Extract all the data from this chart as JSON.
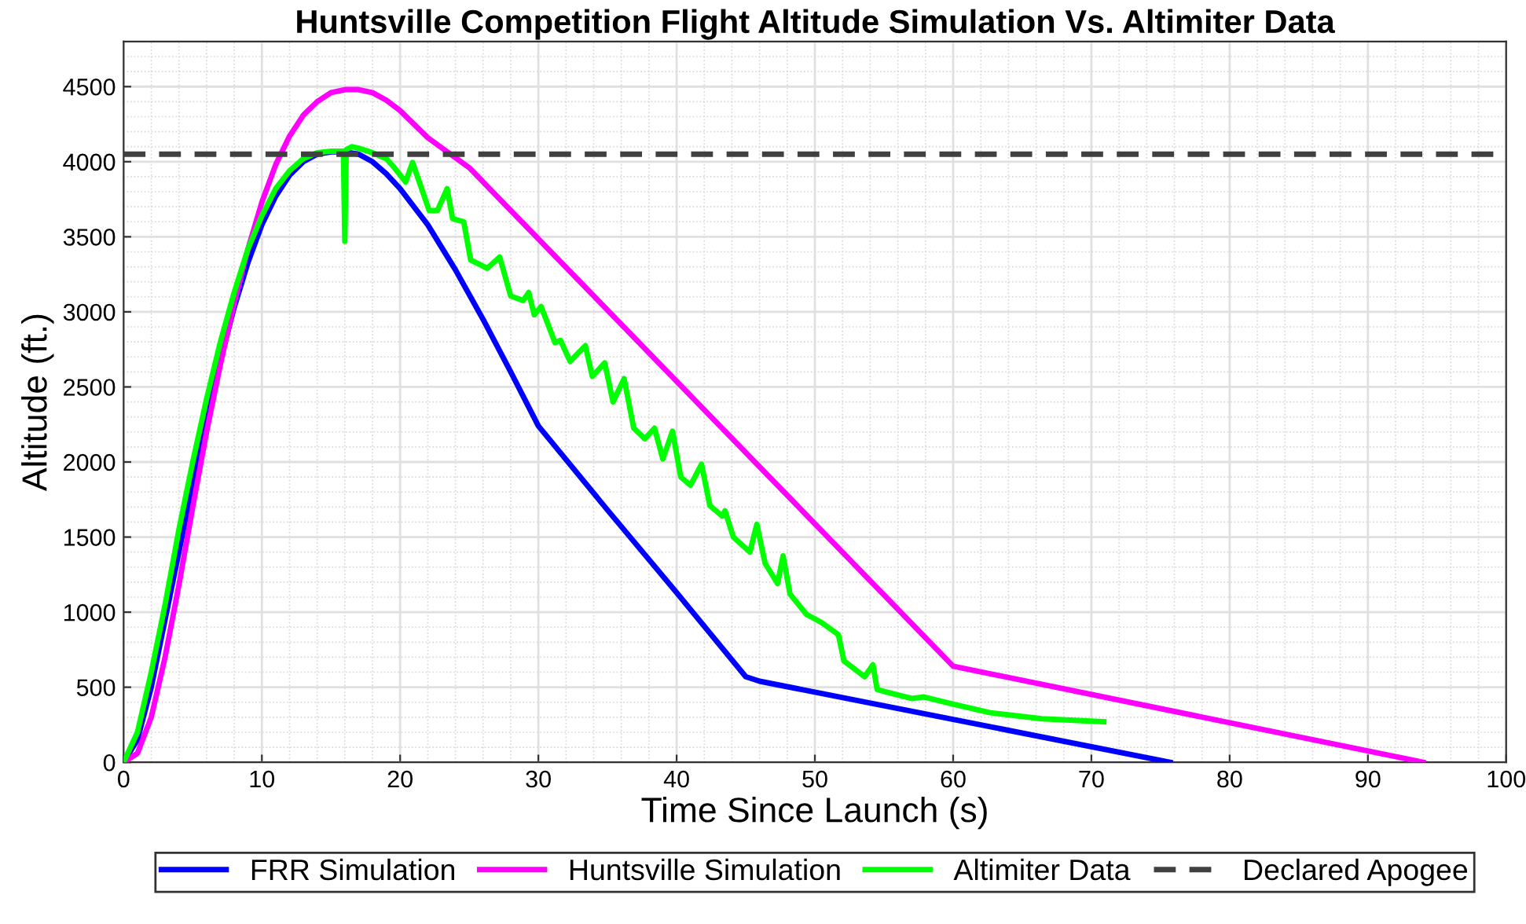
{
  "chart_data": {
    "type": "line",
    "title": "Huntsville Competition Flight Altitude Simulation Vs. Altimiter Data",
    "xlabel": "Time Since Launch (s)",
    "ylabel": "Altitude (ft.)",
    "xlim": [
      0,
      100
    ],
    "xticks": [
      0,
      10,
      20,
      30,
      40,
      50,
      60,
      70,
      80,
      90,
      100
    ],
    "ylim": [
      0,
      4800
    ],
    "yticks": [
      0,
      500,
      1000,
      1500,
      2000,
      2500,
      3000,
      3500,
      4000,
      4500
    ],
    "grid": true,
    "legend": "bottom",
    "line_style": "solid",
    "marker": "none",
    "series": [
      {
        "name": "FRR Simulation",
        "color": "#0000ff",
        "x": [
          0,
          1,
          2,
          3,
          4,
          5,
          6,
          7,
          8,
          9,
          10,
          11,
          12,
          13,
          14,
          15,
          16,
          17,
          18,
          19,
          20,
          22,
          24,
          26,
          28,
          30,
          35,
          40,
          45,
          46,
          75.7
        ],
        "values": [
          0,
          150,
          500,
          950,
          1400,
          1850,
          2280,
          2680,
          3030,
          3330,
          3580,
          3770,
          3910,
          4000,
          4050,
          4065,
          4065,
          4050,
          4000,
          3920,
          3820,
          3580,
          3280,
          2950,
          2600,
          2240,
          1680,
          1130,
          570,
          540,
          0
        ]
      },
      {
        "name": "Huntsville Simulation",
        "color": "#ff00ff",
        "x": [
          0,
          1,
          2,
          3,
          4,
          5,
          6,
          7,
          8,
          9,
          10,
          11,
          12,
          13,
          14,
          15,
          16,
          17,
          18,
          19,
          20,
          22,
          25,
          60,
          94
        ],
        "values": [
          0,
          60,
          300,
          700,
          1180,
          1700,
          2200,
          2650,
          3060,
          3420,
          3730,
          3980,
          4170,
          4310,
          4400,
          4460,
          4480,
          4480,
          4460,
          4410,
          4340,
          4160,
          3960,
          640,
          0
        ]
      },
      {
        "name": "Altimiter Data",
        "color": "#00ff00",
        "x": [
          0,
          1,
          2,
          3,
          4,
          5,
          6,
          7,
          8,
          9,
          10,
          11,
          12,
          13,
          14,
          15,
          15.9,
          16,
          16.1,
          16.5,
          17,
          18,
          19,
          19.5,
          20.4,
          20.9,
          22.1,
          22.7,
          23.4,
          23.8,
          24.6,
          25.1,
          26.3,
          27.2,
          28.0,
          28.9,
          29.3,
          29.7,
          30.2,
          31.2,
          31.6,
          32.3,
          33.4,
          33.9,
          34.8,
          35.4,
          36.2,
          36.9,
          37.7,
          38.4,
          39.0,
          39.7,
          40.3,
          41.0,
          41.8,
          42.4,
          43.3,
          43.5,
          44.1,
          45.3,
          45.8,
          46.4,
          47.3,
          47.7,
          48.2,
          49.4,
          50.5,
          51.7,
          52.1,
          53.6,
          54.2,
          54.5,
          55.3,
          57.0,
          57.9,
          60.1,
          62.7,
          66.4,
          70.9
        ],
        "values": [
          0,
          200,
          600,
          1050,
          1550,
          2000,
          2420,
          2800,
          3130,
          3420,
          3640,
          3820,
          3940,
          4020,
          4060,
          4070,
          4070,
          3470,
          4080,
          4100,
          4090,
          4060,
          4020,
          3970,
          3865,
          3995,
          3675,
          3675,
          3820,
          3620,
          3600,
          3345,
          3290,
          3365,
          3105,
          3075,
          3130,
          2980,
          3035,
          2795,
          2810,
          2670,
          2775,
          2570,
          2660,
          2400,
          2555,
          2225,
          2155,
          2225,
          2020,
          2205,
          1900,
          1845,
          1985,
          1710,
          1640,
          1675,
          1500,
          1400,
          1585,
          1325,
          1190,
          1375,
          1120,
          985,
          930,
          850,
          675,
          570,
          650,
          485,
          465,
          425,
          435,
          385,
          330,
          290,
          270
        ]
      }
    ],
    "ref_lines": [
      {
        "axis": "y",
        "value": 4050,
        "label": "Declared Apogee",
        "color": "#404040",
        "line_style": "dashed"
      }
    ]
  }
}
